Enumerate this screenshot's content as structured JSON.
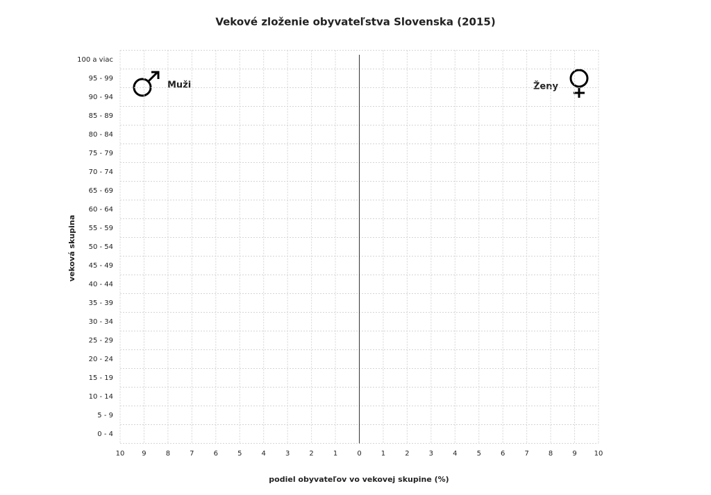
{
  "chart_data": {
    "type": "bar",
    "title": "Vekové zloženie obyvateľstva Slovenska (2015)",
    "x_label": "podiel obyvateľov vo vekovej skupine (%)",
    "y_label": "veková skupina",
    "categories": [
      "0 - 4",
      "5 - 9",
      "10 - 14",
      "15 - 19",
      "20 - 24",
      "25 - 29",
      "30 - 34",
      "35 - 39",
      "40 - 44",
      "45 - 49",
      "50 - 54",
      "55 - 59",
      "60 - 64",
      "65 - 69",
      "70 - 74",
      "75 - 79",
      "80 - 84",
      "85 - 89",
      "90 - 94",
      "95 - 99",
      "100 a viac"
    ],
    "annotations": [
      "Muži",
      "Ženy"
    ],
    "xlim": [
      -10,
      10
    ],
    "xticks": [
      {
        "value": -10,
        "label": "10"
      },
      {
        "value": -9,
        "label": "9"
      },
      {
        "value": -8,
        "label": "8"
      },
      {
        "value": -7,
        "label": "7"
      },
      {
        "value": -6,
        "label": "6"
      },
      {
        "value": -5,
        "label": "5"
      },
      {
        "value": -4,
        "label": "4"
      },
      {
        "value": -3,
        "label": "3"
      },
      {
        "value": -2,
        "label": "2"
      },
      {
        "value": -1,
        "label": "1"
      },
      0,
      1,
      2,
      3,
      4,
      5,
      6,
      7,
      8,
      9,
      10
    ],
    "grid": true
  }
}
